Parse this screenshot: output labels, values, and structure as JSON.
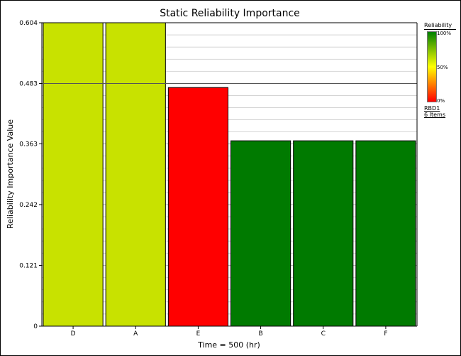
{
  "chart_data": {
    "type": "bar",
    "title": "Static Reliability Importance",
    "xlabel": "Time = 500 (hr)",
    "ylabel": "Reliability Importance Value",
    "categories": [
      "D",
      "A",
      "E",
      "B",
      "C",
      "F"
    ],
    "values": [
      0.604,
      0.604,
      0.475,
      0.369,
      0.369,
      0.369
    ],
    "bar_colors": [
      "#c8e200",
      "#c8e200",
      "#ff0000",
      "#007a00",
      "#007a00",
      "#007a00"
    ],
    "ylim": [
      0,
      0.604
    ],
    "yticks": [
      "0",
      "0.121",
      "0.242",
      "0.363",
      "0.483",
      "0.604"
    ],
    "ytick_values": [
      0,
      0.121,
      0.242,
      0.363,
      0.483,
      0.604
    ],
    "reference_line": 0.483,
    "grid": true
  },
  "legend": {
    "title": "Reliability",
    "high_label": "100%",
    "mid_label": "50%",
    "low_label": "0%",
    "diagram_name": "RBD1",
    "item_count": "6 Items"
  },
  "colors": {
    "background": "#ffffff",
    "axis": "#000000",
    "grid": "#d4d4d4",
    "gradient_high": "#008000",
    "gradient_mid": "#ffff00",
    "gradient_low": "#ff0000"
  }
}
